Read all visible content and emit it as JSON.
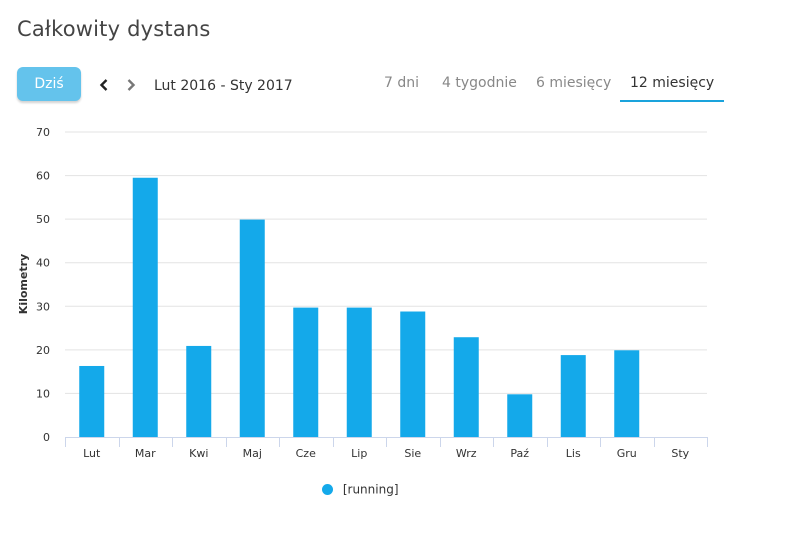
{
  "header": {
    "title": "Całkowity dystans"
  },
  "toolbar": {
    "today_label": "Dziś",
    "range_label": "Lut 2016 - Sty 2017"
  },
  "tabs": [
    {
      "label": "7 dni",
      "active": false
    },
    {
      "label": "4 tygodnie",
      "active": false
    },
    {
      "label": "6 miesięcy",
      "active": false
    },
    {
      "label": "12 miesięcy",
      "active": true
    }
  ],
  "colors": {
    "bar": "#14a9ea",
    "accent": "#1aa3dc",
    "button": "#64c3ec"
  },
  "chart_data": {
    "type": "bar",
    "title": "",
    "xlabel": "",
    "ylabel": "Kilometry",
    "ylim": [
      0,
      70
    ],
    "yticks": [
      0,
      10,
      20,
      30,
      40,
      50,
      60,
      70
    ],
    "grid": true,
    "legend_position": "bottom-center",
    "categories": [
      "Lut",
      "Mar",
      "Kwi",
      "Maj",
      "Cze",
      "Lip",
      "Sie",
      "Wrz",
      "Paź",
      "Lis",
      "Gru",
      "Sty"
    ],
    "series": [
      {
        "name": "[running]",
        "values": [
          16.3,
          59.5,
          20.9,
          49.9,
          29.7,
          29.7,
          28.8,
          22.9,
          9.8,
          18.8,
          19.9,
          0
        ]
      }
    ]
  }
}
